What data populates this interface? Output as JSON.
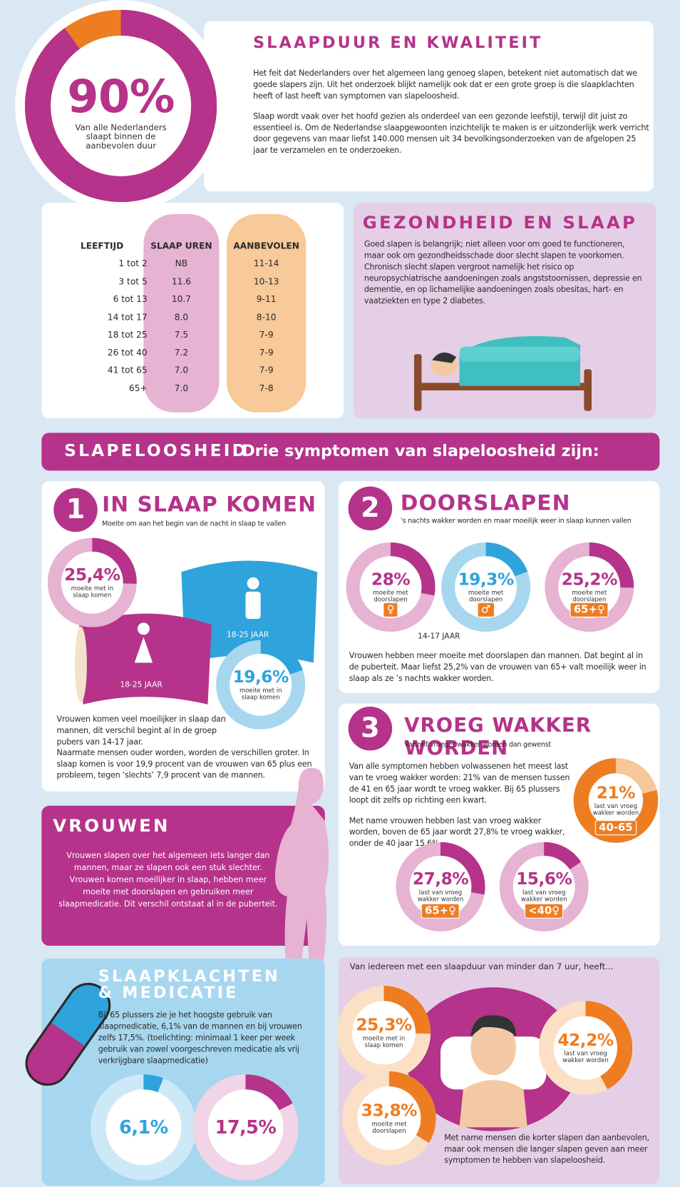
{
  "hero": {
    "value": 90,
    "label": "90%",
    "caption": "Van alle Nederlanders slaapt binnen de aanbevolen duur",
    "color": "#b5338a",
    "track": "#ee7d22"
  },
  "intro": {
    "title": "SLAAPDUUR EN KWALITEIT",
    "paragraphs": [
      "Het feit dat Nederlanders over het algemeen lang genoeg slapen, betekent niet automatisch dat we goede slapers zijn. Uit het onderzoek blijkt namelijk ook dat er een grote groep is die slaapklachten heeft of last heeft van symptomen van slapeloosheid.",
      "Slaap wordt vaak over het hoofd gezien als onderdeel van een gezonde leefstijl, terwijl dit juist zo essentieel is. Om de Nederlandse slaapgewoonten inzichtelijk te maken is er uitzonderlijk werk verricht door gegevens van maar liefst 140.000 mensen uit 34 bevolkingsonderzoeken van de afgelopen 25 jaar te verzamelen en te onderzoeken."
    ]
  },
  "table": {
    "headers": [
      "LEEFTIJD",
      "SLAAP UREN",
      "AANBEVOLEN"
    ],
    "rows": [
      [
        "1 tot 2",
        "NB",
        "11-14"
      ],
      [
        "3 tot 5",
        "11.6",
        "10-13"
      ],
      [
        "6 tot 13",
        "10.7",
        "9-11"
      ],
      [
        "14 tot 17",
        "8.0",
        "8-10"
      ],
      [
        "18 tot 25",
        "7.5",
        "7-9"
      ],
      [
        "26 tot 40",
        "7.2",
        "7-9"
      ],
      [
        "41 tot 65",
        "7.0",
        "7-9"
      ],
      [
        "65+",
        "7.0",
        "7-8"
      ]
    ]
  },
  "health": {
    "title": "GEZONDHEID EN SLAAP",
    "text": "Goed slapen is belangrijk; niet alleen voor om goed te functioneren, maar ook om gezondheidsschade door slecht slapen te voorkomen. Chronisch slecht slapen vergroot namelijk het risico op neuropsychiatrische aandoeningen zoals angststoornissen, depressie en dementie, en op lichamelijke aandoeningen zoals obesitas, hart- en vaatziekten en type 2 diabetes."
  },
  "banner": {
    "title": "SLAPELOOSHEID",
    "subtitle": "Drie symptomen van slapeloosheid zijn:"
  },
  "symptoms": [
    {
      "number": 1,
      "title": "IN SLAAP KOMEN",
      "subtitle": "Moeite om aan het begin van de nacht in slaap te vallen",
      "donuts": [
        {
          "value": 25.4,
          "label": "25,4%",
          "caption": "moeite met in slaap komen",
          "color": "#b5338a",
          "track": "#e6b3d3"
        },
        {
          "value": 19.6,
          "label": "19,6%",
          "caption": "moeite met in slaap komen",
          "color": "#2ea3dc",
          "track": "#a7d7ef"
        }
      ],
      "age_labels": [
        "18-25 JAAR",
        "18-25 JAAR"
      ],
      "paragraphs": [
        "Vrouwen komen veel moeilijker in slaap dan mannen, dit verschil begint al in de groep pubers van 14-17 jaar.",
        "Naarmate mensen ouder worden, worden de verschillen groter. In slaap komen is voor 19,9 procent van de vrouwen van 65 plus een probleem, tegen ‘slechts’ 7,9 procent van de mannen."
      ]
    },
    {
      "number": 2,
      "title": "DOORSLAPEN",
      "subtitle": "’s nachts wakker worden en maar moeilijk weer in slaap kunnen vallen",
      "donuts": [
        {
          "value": 28,
          "label": "28%",
          "caption": "moeite met doorslapen",
          "tag": "♀",
          "color": "#b5338a",
          "track": "#e6b3d3"
        },
        {
          "value": 19.3,
          "label": "19,3%",
          "caption": "moeite met doorslapen",
          "tag": "♂",
          "color": "#2ea3dc",
          "track": "#a7d7ef"
        },
        {
          "value": 25.2,
          "label": "25,2%",
          "caption": "moeite met doorslapen",
          "tag": "65+♀",
          "color": "#b5338a",
          "track": "#e6b3d3"
        }
      ],
      "age_labels": [
        "14-17 JAAR"
      ],
      "paragraphs": [
        "Vrouwen hebben meer moeite met doorslapen dan mannen. Dat begint al in de puberteit. Maar liefst 25,2% van de vrouwen van 65+ valt moeilijk weer in slaap als ze ’s nachts wakker worden."
      ]
    },
    {
      "number": 3,
      "title": "VROEG WAKKER WORDEN",
      "subtitle": "Vanzelf vroeger wakker worden dan gewenst",
      "donuts": [
        {
          "value": 21,
          "label": "21%",
          "caption": "last van vroeg wakker worden",
          "tag": "40-65",
          "color": "#f7c79b",
          "track": "#ee7d22"
        },
        {
          "value": 27.8,
          "label": "27,8%",
          "caption": "last van vroeg wakker worden",
          "tag": "65+♀",
          "color": "#b5338a",
          "track": "#e6b3d3"
        },
        {
          "value": 15.6,
          "label": "15,6%",
          "caption": "last van vroeg wakker worden",
          "tag": "<40♀",
          "color": "#b5338a",
          "track": "#e6b3d3"
        }
      ],
      "age_labels": [],
      "paragraphs": [
        "Van alle symptomen hebben volwassenen het meest last van te vroeg wakker worden: 21% van de mensen tussen de 41 en 65 jaar wordt te vroeg wakker. Bij 65 plussers loopt dit zelfs op richting een kwart.",
        "Met name vrouwen hebben last van vroeg wakker worden, boven de 65 jaar wordt 27,8% te vroeg wakker, onder de 40 jaar 15,6%."
      ]
    }
  ],
  "women": {
    "title": "VROUWEN",
    "text": "Vrouwen slapen over het algemeen iets langer dan mannen, maar ze slapen ook een stuk slechter. Vrouwen komen moeilijker in slaap, hebben meer moeite met doorslapen en gebruiken meer slaapmedicatie. Dit verschil ontstaat al in de puberteit."
  },
  "medication": {
    "title_lines": [
      "SLAAPKLACHTEN",
      "& MEDICATIE"
    ],
    "text": "Bij 65 plussers zie je het hoogste gebruik van slaapmedicatie, 6,1% van de mannen en bij vrouwen zelfs 17,5%. (toelichting: minimaal 1 keer per week gebruik van zowel voorgeschreven medicatie als vrij verkrijgbare slaapmedicatie)",
    "donuts": [
      {
        "value": 6.1,
        "label": "6,1%",
        "color": "#2ea3dc",
        "track": "#cde9f7"
      },
      {
        "value": 17.5,
        "label": "17,5%",
        "color": "#b5338a",
        "track": "#f1d4e6"
      }
    ]
  },
  "short_sleep": {
    "heading": "Van iedereen met een slaapduur van minder dan 7 uur, heeft...",
    "donuts": [
      {
        "value": 25.3,
        "label": "25,3%",
        "caption": "moeite met in slaap komen",
        "color": "#ee7d22",
        "track": "#fbe0c6"
      },
      {
        "value": 42.2,
        "label": "42,2%",
        "caption": "last van vroeg wakker worden",
        "color": "#ee7d22",
        "track": "#fbe0c6"
      },
      {
        "value": 33.8,
        "label": "33,8%",
        "caption": "moeite met doorslapen",
        "color": "#ee7d22",
        "track": "#fbe0c6"
      }
    ],
    "text": "Met name mensen die korter slapen dan aanbevolen, maar ook mensen die langer slapen geven aan meer symptomen te hebben van slapeloosheid."
  }
}
